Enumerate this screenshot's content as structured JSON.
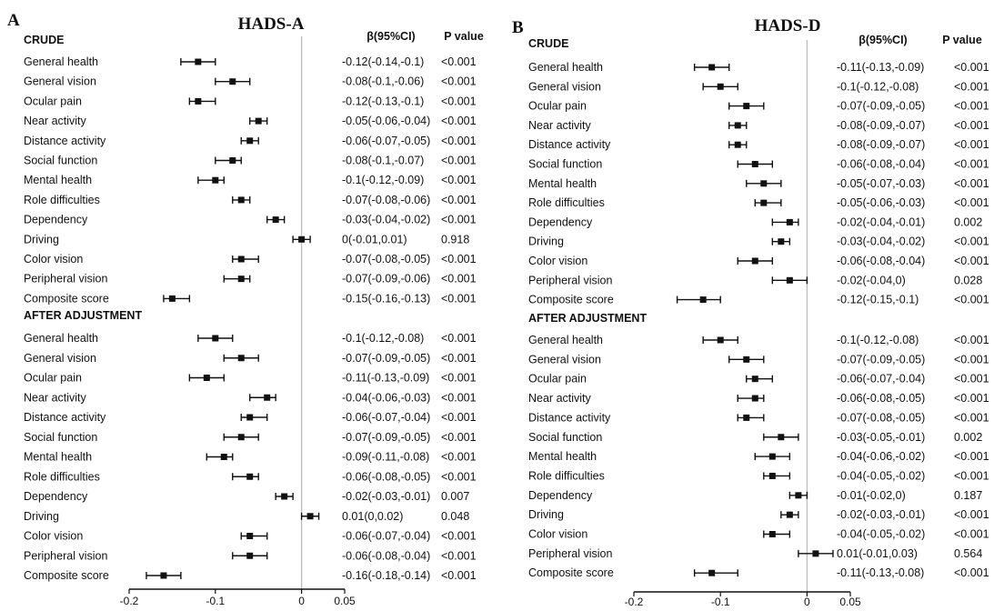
{
  "chart_data": [
    {
      "type": "forest",
      "panel": "A",
      "title": "HADS-A",
      "columns": {
        "estimate": "β(95%CI)",
        "p": "P value"
      },
      "xticks": [
        "-0.2",
        "-0.1",
        "0",
        "0.05"
      ],
      "xlim": [
        -0.2,
        0.05
      ],
      "reference_line": 0,
      "sections": [
        {
          "label": "CRUDE",
          "rows": [
            {
              "label": "General health",
              "est": -0.12,
              "lo": -0.14,
              "hi": -0.1,
              "ci_text": "-0.12(-0.14,-0.1)",
              "p": "<0.001"
            },
            {
              "label": "General vision",
              "est": -0.08,
              "lo": -0.1,
              "hi": -0.06,
              "ci_text": "-0.08(-0.1,-0.06)",
              "p": "<0.001"
            },
            {
              "label": "Ocular pain",
              "est": -0.12,
              "lo": -0.13,
              "hi": -0.1,
              "ci_text": "-0.12(-0.13,-0.1)",
              "p": "<0.001"
            },
            {
              "label": "Near activity",
              "est": -0.05,
              "lo": -0.06,
              "hi": -0.04,
              "ci_text": "-0.05(-0.06,-0.04)",
              "p": "<0.001"
            },
            {
              "label": "Distance activity",
              "est": -0.06,
              "lo": -0.07,
              "hi": -0.05,
              "ci_text": "-0.06(-0.07,-0.05)",
              "p": "<0.001"
            },
            {
              "label": "Social function",
              "est": -0.08,
              "lo": -0.1,
              "hi": -0.07,
              "ci_text": "-0.08(-0.1,-0.07)",
              "p": "<0.001"
            },
            {
              "label": "Mental health",
              "est": -0.1,
              "lo": -0.12,
              "hi": -0.09,
              "ci_text": "-0.1(-0.12,-0.09)",
              "p": "<0.001"
            },
            {
              "label": "Role difficulties",
              "est": -0.07,
              "lo": -0.08,
              "hi": -0.06,
              "ci_text": "-0.07(-0.08,-0.06)",
              "p": "<0.001"
            },
            {
              "label": "Dependency",
              "est": -0.03,
              "lo": -0.04,
              "hi": -0.02,
              "ci_text": "-0.03(-0.04,-0.02)",
              "p": "<0.001"
            },
            {
              "label": "Driving",
              "est": 0,
              "lo": -0.01,
              "hi": 0.01,
              "ci_text": "0(-0.01,0.01)",
              "p": "0.918"
            },
            {
              "label": "Color vision",
              "est": -0.07,
              "lo": -0.08,
              "hi": -0.05,
              "ci_text": "-0.07(-0.08,-0.05)",
              "p": "<0.001"
            },
            {
              "label": "Peripheral vision",
              "est": -0.07,
              "lo": -0.09,
              "hi": -0.06,
              "ci_text": "-0.07(-0.09,-0.06)",
              "p": "<0.001"
            },
            {
              "label": "Composite score",
              "est": -0.15,
              "lo": -0.16,
              "hi": -0.13,
              "ci_text": "-0.15(-0.16,-0.13)",
              "p": "<0.001"
            }
          ]
        },
        {
          "label": "AFTER ADJUSTMENT",
          "rows": [
            {
              "label": "General health",
              "est": -0.1,
              "lo": -0.12,
              "hi": -0.08,
              "ci_text": "-0.1(-0.12,-0.08)",
              "p": "<0.001"
            },
            {
              "label": "General vision",
              "est": -0.07,
              "lo": -0.09,
              "hi": -0.05,
              "ci_text": "-0.07(-0.09,-0.05)",
              "p": "<0.001"
            },
            {
              "label": "Ocular pain",
              "est": -0.11,
              "lo": -0.13,
              "hi": -0.09,
              "ci_text": "-0.11(-0.13,-0.09)",
              "p": "<0.001"
            },
            {
              "label": "Near activity",
              "est": -0.04,
              "lo": -0.06,
              "hi": -0.03,
              "ci_text": "-0.04(-0.06,-0.03)",
              "p": "<0.001"
            },
            {
              "label": "Distance activity",
              "est": -0.06,
              "lo": -0.07,
              "hi": -0.04,
              "ci_text": "-0.06(-0.07,-0.04)",
              "p": "<0.001"
            },
            {
              "label": "Social function",
              "est": -0.07,
              "lo": -0.09,
              "hi": -0.05,
              "ci_text": "-0.07(-0.09,-0.05)",
              "p": "<0.001"
            },
            {
              "label": "Mental health",
              "est": -0.09,
              "lo": -0.11,
              "hi": -0.08,
              "ci_text": "-0.09(-0.11,-0.08)",
              "p": "<0.001"
            },
            {
              "label": "Role difficulties",
              "est": -0.06,
              "lo": -0.08,
              "hi": -0.05,
              "ci_text": "-0.06(-0.08,-0.05)",
              "p": "<0.001"
            },
            {
              "label": "Dependency",
              "est": -0.02,
              "lo": -0.03,
              "hi": -0.01,
              "ci_text": "-0.02(-0.03,-0.01)",
              "p": "0.007"
            },
            {
              "label": "Driving",
              "est": 0.01,
              "lo": 0,
              "hi": 0.02,
              "ci_text": "0.01(0,0.02)",
              "p": "0.048"
            },
            {
              "label": "Color vision",
              "est": -0.06,
              "lo": -0.07,
              "hi": -0.04,
              "ci_text": "-0.06(-0.07,-0.04)",
              "p": "<0.001"
            },
            {
              "label": "Peripheral vision",
              "est": -0.06,
              "lo": -0.08,
              "hi": -0.04,
              "ci_text": "-0.06(-0.08,-0.04)",
              "p": "<0.001"
            },
            {
              "label": "Composite score",
              "est": -0.16,
              "lo": -0.18,
              "hi": -0.14,
              "ci_text": "-0.16(-0.18,-0.14)",
              "p": "<0.001"
            }
          ]
        }
      ]
    },
    {
      "type": "forest",
      "panel": "B",
      "title": "HADS-D",
      "columns": {
        "estimate": "β(95%CI)",
        "p": "P  value"
      },
      "xticks": [
        "-0.2",
        "-0.1",
        "0",
        "0.05"
      ],
      "xlim": [
        -0.2,
        0.05
      ],
      "reference_line": 0,
      "sections": [
        {
          "label": "CRUDE",
          "rows": [
            {
              "label": "General health",
              "est": -0.11,
              "lo": -0.13,
              "hi": -0.09,
              "ci_text": "-0.11(-0.13,-0.09)",
              "p": "<0.001"
            },
            {
              "label": "General vision",
              "est": -0.1,
              "lo": -0.12,
              "hi": -0.08,
              "ci_text": "-0.1(-0.12,-0.08)",
              "p": "<0.001"
            },
            {
              "label": "Ocular pain",
              "est": -0.07,
              "lo": -0.09,
              "hi": -0.05,
              "ci_text": "-0.07(-0.09,-0.05)",
              "p": "<0.001"
            },
            {
              "label": "Near activity",
              "est": -0.08,
              "lo": -0.09,
              "hi": -0.07,
              "ci_text": "-0.08(-0.09,-0.07)",
              "p": "<0.001"
            },
            {
              "label": "Distance activity",
              "est": -0.08,
              "lo": -0.09,
              "hi": -0.07,
              "ci_text": "-0.08(-0.09,-0.07)",
              "p": "<0.001"
            },
            {
              "label": "Social function",
              "est": -0.06,
              "lo": -0.08,
              "hi": -0.04,
              "ci_text": "-0.06(-0.08,-0.04)",
              "p": "<0.001"
            },
            {
              "label": "Mental health",
              "est": -0.05,
              "lo": -0.07,
              "hi": -0.03,
              "ci_text": "-0.05(-0.07,-0.03)",
              "p": "<0.001"
            },
            {
              "label": "Role difficulties",
              "est": -0.05,
              "lo": -0.06,
              "hi": -0.03,
              "ci_text": "-0.05(-0.06,-0.03)",
              "p": "<0.001"
            },
            {
              "label": "Dependency",
              "est": -0.02,
              "lo": -0.04,
              "hi": -0.01,
              "ci_text": "-0.02(-0.04,-0.01)",
              "p": "0.002"
            },
            {
              "label": "Driving",
              "est": -0.03,
              "lo": -0.04,
              "hi": -0.02,
              "ci_text": "-0.03(-0.04,-0.02)",
              "p": "<0.001"
            },
            {
              "label": "Color vision",
              "est": -0.06,
              "lo": -0.08,
              "hi": -0.04,
              "ci_text": "-0.06(-0.08,-0.04)",
              "p": "<0.001"
            },
            {
              "label": "Peripheral vision",
              "est": -0.02,
              "lo": -0.04,
              "hi": 0,
              "ci_text": "-0.02(-0.04,0)",
              "p": "0.028"
            },
            {
              "label": "Composite score",
              "est": -0.12,
              "lo": -0.15,
              "hi": -0.1,
              "ci_text": "-0.12(-0.15,-0.1)",
              "p": "<0.001"
            }
          ]
        },
        {
          "label": "AFTER ADJUSTMENT",
          "rows": [
            {
              "label": "General health",
              "est": -0.1,
              "lo": -0.12,
              "hi": -0.08,
              "ci_text": "-0.1(-0.12,-0.08)",
              "p": "<0.001"
            },
            {
              "label": "General vision",
              "est": -0.07,
              "lo": -0.09,
              "hi": -0.05,
              "ci_text": "-0.07(-0.09,-0.05)",
              "p": "<0.001"
            },
            {
              "label": "Ocular pain",
              "est": -0.06,
              "lo": -0.07,
              "hi": -0.04,
              "ci_text": "-0.06(-0.07,-0.04)",
              "p": "<0.001"
            },
            {
              "label": "Near activity",
              "est": -0.06,
              "lo": -0.08,
              "hi": -0.05,
              "ci_text": "-0.06(-0.08,-0.05)",
              "p": "<0.001"
            },
            {
              "label": "Distance activity",
              "est": -0.07,
              "lo": -0.08,
              "hi": -0.05,
              "ci_text": "-0.07(-0.08,-0.05)",
              "p": "<0.001"
            },
            {
              "label": "Social function",
              "est": -0.03,
              "lo": -0.05,
              "hi": -0.01,
              "ci_text": "-0.03(-0.05,-0.01)",
              "p": "0.002"
            },
            {
              "label": "Mental health",
              "est": -0.04,
              "lo": -0.06,
              "hi": -0.02,
              "ci_text": "-0.04(-0.06,-0.02)",
              "p": "<0.001"
            },
            {
              "label": "Role difficulties",
              "est": -0.04,
              "lo": -0.05,
              "hi": -0.02,
              "ci_text": "-0.04(-0.05,-0.02)",
              "p": "<0.001"
            },
            {
              "label": "Dependency",
              "est": -0.01,
              "lo": -0.02,
              "hi": 0,
              "ci_text": "-0.01(-0.02,0)",
              "p": "0.187"
            },
            {
              "label": "Driving",
              "est": -0.02,
              "lo": -0.03,
              "hi": -0.01,
              "ci_text": "-0.02(-0.03,-0.01)",
              "p": "<0.001"
            },
            {
              "label": "Color vision",
              "est": -0.04,
              "lo": -0.05,
              "hi": -0.02,
              "ci_text": "-0.04(-0.05,-0.02)",
              "p": "<0.001"
            },
            {
              "label": "Peripheral vision",
              "est": 0.01,
              "lo": -0.01,
              "hi": 0.03,
              "ci_text": "0.01(-0.01,0.03)",
              "p": "0.564"
            },
            {
              "label": "Composite score",
              "est": -0.11,
              "lo": -0.13,
              "hi": -0.08,
              "ci_text": "-0.11(-0.13,-0.08)",
              "p": "<0.001"
            }
          ]
        }
      ]
    }
  ]
}
